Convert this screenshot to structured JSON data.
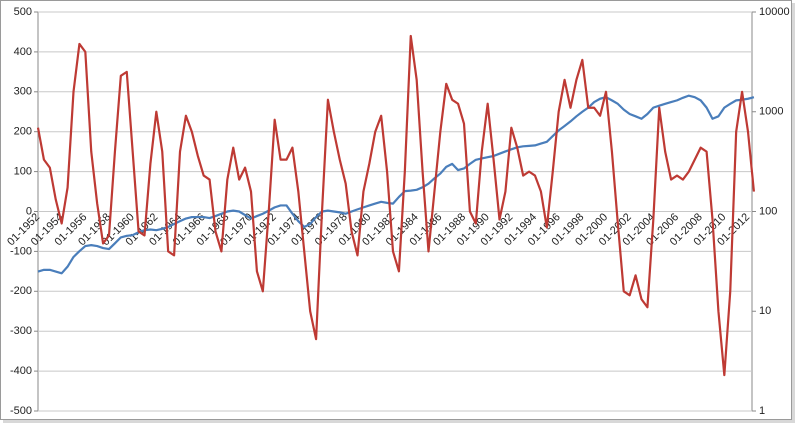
{
  "chart_data": {
    "type": "line",
    "categories": [
      "01-1952",
      null,
      null,
      null,
      "01-1954",
      null,
      null,
      null,
      "01-1956",
      null,
      null,
      null,
      "01-1958",
      null,
      null,
      null,
      "01-1960",
      null,
      null,
      null,
      "01-1962",
      null,
      null,
      null,
      "01-1964",
      null,
      null,
      null,
      "01-1966",
      null,
      null,
      null,
      "01-1968",
      null,
      null,
      null,
      "01-1970",
      null,
      null,
      null,
      "01-1972",
      null,
      null,
      null,
      "01-1974",
      null,
      null,
      null,
      "01-1976",
      null,
      null,
      null,
      "01-1978",
      null,
      null,
      null,
      "01-1980",
      null,
      null,
      null,
      "01-1982",
      null,
      null,
      null,
      "01-1984",
      null,
      null,
      null,
      "01-1986",
      null,
      null,
      null,
      "01-1988",
      null,
      null,
      null,
      "01-1990",
      null,
      null,
      null,
      "01-1992",
      null,
      null,
      null,
      "01-1994",
      null,
      null,
      null,
      "01-1996",
      null,
      null,
      null,
      "01-1998",
      null,
      null,
      null,
      "01-2000",
      null,
      null,
      null,
      "01-2002",
      null,
      null,
      null,
      "01-2004",
      null,
      null,
      null,
      "01-2006",
      null,
      null,
      null,
      "01-2008",
      null,
      null,
      null,
      "01-2010",
      null,
      null,
      null,
      "01-2012",
      null
    ],
    "series": [
      {
        "color": "#be3a34",
        "axis": "y",
        "values": [
          210,
          130,
          110,
          30,
          -30,
          60,
          300,
          420,
          400,
          150,
          20,
          -80,
          -60,
          150,
          340,
          350,
          150,
          -50,
          -60,
          120,
          250,
          150,
          -100,
          -110,
          150,
          240,
          200,
          140,
          90,
          80,
          -50,
          -100,
          80,
          160,
          80,
          110,
          50,
          -150,
          -200,
          0,
          230,
          130,
          130,
          160,
          50,
          -100,
          -250,
          -320,
          0,
          280,
          200,
          130,
          70,
          -50,
          -110,
          50,
          120,
          200,
          240,
          100,
          -100,
          -150,
          100,
          440,
          330,
          100,
          -100,
          50,
          200,
          320,
          280,
          270,
          220,
          0,
          -30,
          150,
          270,
          130,
          -20,
          50,
          210,
          160,
          90,
          100,
          90,
          50,
          -40,
          100,
          250,
          330,
          260,
          330,
          380,
          260,
          260,
          240,
          300,
          150,
          -30,
          -200,
          -210,
          -160,
          -220,
          -240,
          -20,
          260,
          150,
          80,
          90,
          80,
          100,
          130,
          160,
          150,
          -20,
          -250,
          -410,
          -200,
          200,
          300,
          200,
          50
        ]
      },
      {
        "color": "#4a7ebb",
        "axis": "y2",
        "values": [
          25,
          26,
          26,
          25,
          24,
          28,
          35,
          40,
          45,
          46,
          45,
          43,
          42,
          48,
          55,
          57,
          58,
          62,
          65,
          66,
          65,
          67,
          70,
          75,
          80,
          85,
          88,
          88,
          88,
          86,
          90,
          95,
          100,
          102,
          100,
          92,
          85,
          90,
          95,
          102,
          110,
          115,
          115,
          95,
          80,
          70,
          75,
          88,
          100,
          102,
          100,
          98,
          95,
          100,
          105,
          110,
          115,
          120,
          125,
          122,
          120,
          140,
          160,
          162,
          165,
          175,
          190,
          215,
          240,
          280,
          300,
          260,
          270,
          300,
          330,
          340,
          350,
          360,
          380,
          400,
          420,
          440,
          450,
          455,
          460,
          480,
          500,
          570,
          650,
          720,
          800,
          900,
          1000,
          1100,
          1250,
          1350,
          1400,
          1300,
          1200,
          1050,
          950,
          900,
          850,
          950,
          1100,
          1150,
          1200,
          1250,
          1300,
          1380,
          1450,
          1400,
          1300,
          1100,
          850,
          900,
          1100,
          1200,
          1300,
          1320,
          1350,
          1400
        ]
      }
    ],
    "ylim": [
      -500,
      500
    ],
    "yticks": [
      -500,
      -400,
      -300,
      -200,
      -100,
      0,
      100,
      200,
      300,
      400,
      500
    ],
    "y2lim": [
      1,
      10000
    ],
    "y2ticks": [
      1,
      10,
      100,
      1000,
      10000
    ],
    "y2scale": "log",
    "grid": true
  }
}
